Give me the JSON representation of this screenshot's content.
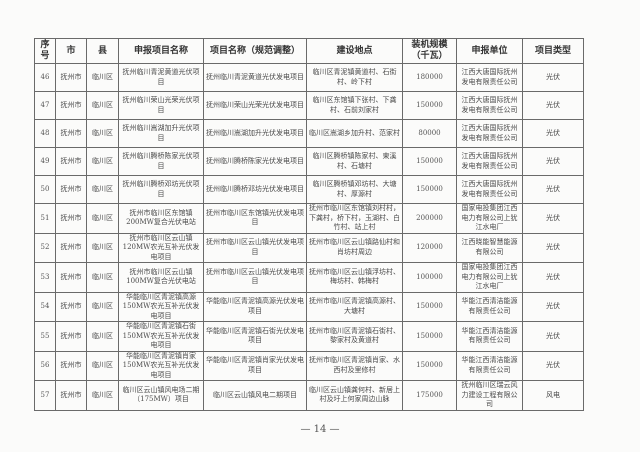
{
  "headers": [
    "序号",
    "市",
    "县",
    "申报项目名称",
    "项目名称（规范调整）",
    "建设地点",
    "装机规模（千瓦）",
    "申报单位",
    "项目类型"
  ],
  "rows": [
    [
      "46",
      "抚州市",
      "临川区",
      "抚州临川青泥黄道光伏项目",
      "抚州临川青泥黄道光伏发电项目",
      "临川区青泥镇黄道村、石街村、岭下村",
      "180000",
      "江西大唐国际抚州发电有限责任公司",
      "光伏"
    ],
    [
      "47",
      "抚州市",
      "临川区",
      "抚州临川荣山光荣光伏项目",
      "抚州临川荣山光荣光伏发电项目",
      "临川区东馆镇下张村、下龚村、石前刘家村",
      "150000",
      "江西大唐国际抚州发电有限责任公司",
      "光伏"
    ],
    [
      "48",
      "抚州市",
      "临川区",
      "抚州临川嵩湖加升光伏项目",
      "抚州临川嵩湖加升光伏发电项目",
      "临川区嵩湖乡加升村、范家村",
      "80000",
      "江西大唐国际抚州发电有限责任公司",
      "光伏"
    ],
    [
      "49",
      "抚州市",
      "临川区",
      "抚州临川腾桥陈家光伏项目",
      "抚州临川腾桥陈家光伏发电项目",
      "临川区腾桥镇陈家村、東溪村、石塘村",
      "150000",
      "江西大唐国际抚州发电有限责任公司",
      "光伏"
    ],
    [
      "50",
      "抚州市",
      "临川区",
      "抚州临川腾桥邓坊光伏项目",
      "抚州临川腾桥邓坊光伏发电项目",
      "临川区腾桥镇邓坊村、大塘村、厚源村",
      "150000",
      "江西大唐国际抚州发电有限责任公司",
      "光伏"
    ],
    [
      "51",
      "抚州市",
      "临川区",
      "抚州市临川区东馆镇200MW复合光伏电站",
      "抚州市临川区东馆镇光伏发电项目",
      "抚州市临川区东馆镇刘村村，下龚村，桥下村，玉湖村、白竹村、站上村",
      "200000",
      "国家电投集团江西电力有限公司上犹江水电厂",
      "光伏"
    ],
    [
      "52",
      "抚州市",
      "临川区",
      "抚州市临川区云山镇120MW农光互补光伏发电项目",
      "抚州市临川区云山镇光伏发电项目",
      "抚州市临川区云山镇路仙村和肖坊村周边",
      "120000",
      "江西晓能智慧能源有限公司",
      "光伏"
    ],
    [
      "53",
      "抚州市",
      "临川区",
      "抚州市临川区云山镇100MW复合光伏电站",
      "抚州市临川区云山镇光伏发电项目",
      "抚州市临川区云山镇浮坊村、梅坊村、韩梅村",
      "100000",
      "国家电投集团江西电力有限公司上犹江水电厂",
      "光伏"
    ],
    [
      "54",
      "抚州市",
      "临川区",
      "华能临川区青泥镇高源150MW农光互补光伏发电项目",
      "华能临川区青泥镇高源光伏发电项目",
      "抚州市临川区青泥镇高源村、大塘村",
      "150000",
      "华能江西清洁能源有限责任公司",
      "光伏"
    ],
    [
      "55",
      "抚州市",
      "临川区",
      "华能临川区青泥镇石街150MW农光互补光伏发电项目",
      "华能临川区青泥镇石街光伏发电项目",
      "抚州市临川区青泥镇石街村、黎家村及黄道村",
      "150000",
      "华能江西清洁能源有限责任公司",
      "光伏"
    ],
    [
      "56",
      "抚州市",
      "临川区",
      "华能临川区青泥镇肖家150MW农光互补光伏发电项目",
      "华能临川区青泥镇肖家光伏发电项目",
      "抚州市临川区青泥镇肖家、水西村及里修村",
      "150000",
      "华能江西清洁能源有限责任公司",
      "光伏"
    ],
    [
      "57",
      "抚州市",
      "临川区",
      "临川区云山镇风电场二期（175MW）项目",
      "临川区云山镇风电二期项目",
      "临川区云山镇龚何村、新居上村及圩上何家周边山脉",
      "175000",
      "抚州临川区瑞云风力建设工程有限公司",
      "风电"
    ]
  ],
  "page_number": "— 14 —"
}
